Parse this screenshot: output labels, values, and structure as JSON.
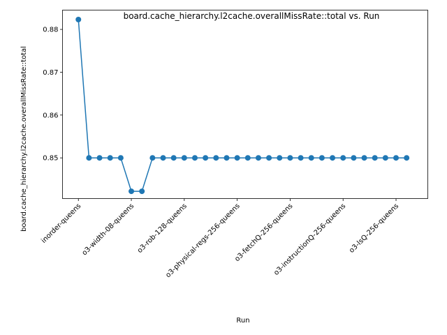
{
  "chart_data": {
    "type": "line",
    "title": "board.cache_hierarchy.l2cache.overallMissRate::total vs. Run",
    "xlabel": "Run",
    "ylabel": "board.cache_hierarchy.l2cache.overallMissRate::total",
    "x_tick_labels": [
      "inorder-queens",
      "o3-width-08-queens",
      "o3-rob-128-queens",
      "o3-physical-regs-256-queens",
      "o3-fetchQ-256-queens",
      "o3-instructionQ-256-queens",
      "o3-lsQ-256-queens"
    ],
    "x_tick_positions": [
      0,
      5,
      10,
      15,
      20,
      25,
      30
    ],
    "x_tick_rotation": 45,
    "y_ticks": [
      0.85,
      0.86,
      0.87,
      0.88
    ],
    "y_tick_labels": [
      "0.85",
      "0.86",
      "0.87",
      "0.88"
    ],
    "xlim": [
      -1.5,
      33
    ],
    "ylim": [
      0.8405,
      0.8845
    ],
    "grid": false,
    "marker": "circle",
    "series": [
      {
        "color": "#1f77b4",
        "x": [
          0,
          1,
          2,
          3,
          4,
          5,
          6,
          7,
          8,
          9,
          10,
          11,
          12,
          13,
          14,
          15,
          16,
          17,
          18,
          19,
          20,
          21,
          22,
          23,
          24,
          25,
          26,
          27,
          28,
          29,
          30,
          31
        ],
        "values": [
          0.8823,
          0.85,
          0.85,
          0.85,
          0.85,
          0.8422,
          0.8422,
          0.85,
          0.85,
          0.85,
          0.85,
          0.85,
          0.85,
          0.85,
          0.85,
          0.85,
          0.85,
          0.85,
          0.85,
          0.85,
          0.85,
          0.85,
          0.85,
          0.85,
          0.85,
          0.85,
          0.85,
          0.85,
          0.85,
          0.85,
          0.85,
          0.85
        ]
      }
    ]
  }
}
